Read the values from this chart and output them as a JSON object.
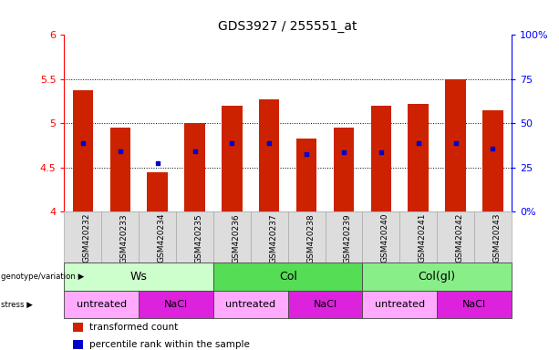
{
  "title": "GDS3927 / 255551_at",
  "samples": [
    "GSM420232",
    "GSM420233",
    "GSM420234",
    "GSM420235",
    "GSM420236",
    "GSM420237",
    "GSM420238",
    "GSM420239",
    "GSM420240",
    "GSM420241",
    "GSM420242",
    "GSM420243"
  ],
  "bar_tops": [
    5.38,
    4.95,
    4.45,
    5.0,
    5.2,
    5.27,
    4.83,
    4.95,
    5.2,
    5.22,
    5.5,
    5.15
  ],
  "blue_dots": [
    4.78,
    4.68,
    4.55,
    4.68,
    4.78,
    4.78,
    4.65,
    4.67,
    4.67,
    4.78,
    4.78,
    4.72
  ],
  "bar_bottom": 4.0,
  "ylim_left": [
    4.0,
    6.0
  ],
  "yticks_left": [
    4.0,
    4.5,
    5.0,
    5.5,
    6.0
  ],
  "ytick_labels_left": [
    "4",
    "4.5",
    "5",
    "5.5",
    "6"
  ],
  "hlines": [
    4.5,
    5.0,
    5.5
  ],
  "ylim_right": [
    0,
    100
  ],
  "yticks_right": [
    0,
    25,
    50,
    75,
    100
  ],
  "ytick_labels_right": [
    "0%",
    "25",
    "50",
    "75",
    "100%"
  ],
  "bar_color": "#cc2200",
  "dot_color": "#0000cc",
  "xtick_bg": "#dddddd",
  "genotype_groups": [
    {
      "label": "Ws",
      "start": 0,
      "end": 4,
      "color": "#ccffcc"
    },
    {
      "label": "Col",
      "start": 4,
      "end": 8,
      "color": "#55dd55"
    },
    {
      "label": "Col(gl)",
      "start": 8,
      "end": 12,
      "color": "#88ee88"
    }
  ],
  "stress_groups": [
    {
      "label": "untreated",
      "start": 0,
      "end": 2,
      "color": "#ffaaff"
    },
    {
      "label": "NaCl",
      "start": 2,
      "end": 4,
      "color": "#dd22dd"
    },
    {
      "label": "untreated",
      "start": 4,
      "end": 6,
      "color": "#ffaaff"
    },
    {
      "label": "NaCl",
      "start": 6,
      "end": 8,
      "color": "#dd22dd"
    },
    {
      "label": "untreated",
      "start": 8,
      "end": 10,
      "color": "#ffaaff"
    },
    {
      "label": "NaCl",
      "start": 10,
      "end": 12,
      "color": "#dd22dd"
    }
  ],
  "bar_width": 0.55,
  "dot_size": 8,
  "legend_items": [
    {
      "label": "transformed count",
      "color": "#cc2200"
    },
    {
      "label": "percentile rank within the sample",
      "color": "#0000cc"
    }
  ]
}
